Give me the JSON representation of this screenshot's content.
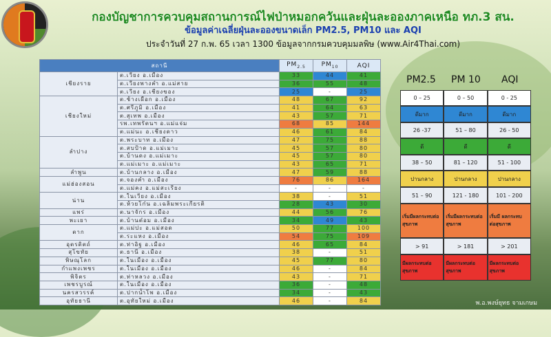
{
  "header": {
    "title": "กองบัญชาการควบคุมสถานการณ์ไฟป่าหมอกควันและฝุ่นละอองภาคเหนือ ทภ.3 สน.",
    "subtitle": "ข้อมูลค่าเฉลี่ยฝุ่นละอองขนาดเล็ก PM2.5, PM10 และ AQI",
    "date_line": "ประจำวันที่ 27 ก.พ. 65 เวลา 1300 ข้อมูลจากกรมควบคุมมลพิษ (www.Air4Thai.com)"
  },
  "table": {
    "col_station": "สถานี",
    "col_pm25": "PM2.5",
    "col_pm10": "PM10",
    "col_aqi": "AQI",
    "provinces": [
      {
        "name": "เชียงราย",
        "stations": [
          {
            "name": "ต.เวียง อ.เมือง",
            "pm25": "33",
            "pm10": "44",
            "aqi": "41",
            "c": [
              "g",
              "b",
              "g"
            ]
          },
          {
            "name": "ต.เวียงพางคำ อ.แม่สาย",
            "pm25": "36",
            "pm10": "55",
            "aqi": "48",
            "c": [
              "g",
              "g",
              "g"
            ]
          },
          {
            "name": "ต.เวียง อ.เชียงของ",
            "pm25": "25",
            "pm10": "-",
            "aqi": "25",
            "c": [
              "b",
              "w",
              "b"
            ]
          }
        ]
      },
      {
        "name": "เชียงใหม่",
        "stations": [
          {
            "name": "ต.ช้างเผือก อ.เมือง",
            "pm25": "48",
            "pm10": "67",
            "aqi": "92",
            "c": [
              "y",
              "g",
              "y"
            ]
          },
          {
            "name": "ต.ศรีภูมิ อ.เมือง",
            "pm25": "41",
            "pm10": "64",
            "aqi": "63",
            "c": [
              "y",
              "g",
              "y"
            ]
          },
          {
            "name": "ต.สุเทพ อ.เมือง",
            "pm25": "43",
            "pm10": "57",
            "aqi": "71",
            "c": [
              "y",
              "g",
              "y"
            ]
          },
          {
            "name": "รพ.เทพรัตนฯ อ.แม่แจ่ม",
            "pm25": "68",
            "pm10": "85",
            "aqi": "144",
            "c": [
              "o",
              "y",
              "o"
            ]
          },
          {
            "name": "ต.แม่นะ อ.เชียงดาว",
            "pm25": "46",
            "pm10": "61",
            "aqi": "84",
            "c": [
              "y",
              "g",
              "y"
            ]
          }
        ]
      },
      {
        "name": "ลำปาง",
        "stations": [
          {
            "name": "ต.พระบาท อ.เมือง",
            "pm25": "47",
            "pm10": "75",
            "aqi": "88",
            "c": [
              "y",
              "g",
              "y"
            ]
          },
          {
            "name": "ต.สบป้าด อ.แม่เมาะ",
            "pm25": "45",
            "pm10": "57",
            "aqi": "80",
            "c": [
              "y",
              "g",
              "y"
            ]
          },
          {
            "name": "ต.บ้านดง อ.แม่เมาะ",
            "pm25": "45",
            "pm10": "57",
            "aqi": "80",
            "c": [
              "y",
              "g",
              "y"
            ]
          },
          {
            "name": "ต.แม่เมาะ อ.แม่เมาะ",
            "pm25": "43",
            "pm10": "65",
            "aqi": "71",
            "c": [
              "y",
              "g",
              "y"
            ]
          }
        ]
      },
      {
        "name": "ลำพูน",
        "stations": [
          {
            "name": "ต.บ้านกลาง อ.เมือง",
            "pm25": "47",
            "pm10": "59",
            "aqi": "88",
            "c": [
              "y",
              "g",
              "y"
            ]
          }
        ]
      },
      {
        "name": "แม่ฮ่องสอน",
        "stations": [
          {
            "name": "ต.จองคำ อ.เมือง",
            "pm25": "76",
            "pm10": "86",
            "aqi": "164",
            "c": [
              "o",
              "y",
              "o"
            ]
          },
          {
            "name": "ต.แม่คง อ.แม่สะเรียง",
            "pm25": "-",
            "pm10": "-",
            "aqi": "-",
            "c": [
              "w",
              "w",
              "w"
            ]
          }
        ]
      },
      {
        "name": "น่าน",
        "stations": [
          {
            "name": "ต.ในเวียง อ.เมือง",
            "pm25": "38",
            "pm10": "-",
            "aqi": "51",
            "c": [
              "y",
              "w",
              "y"
            ]
          },
          {
            "name": "ต.ห้วยโก๋น อ.เฉลิมพระเกียรติ",
            "pm25": "28",
            "pm10": "43",
            "aqi": "30",
            "c": [
              "g",
              "b",
              "g"
            ]
          }
        ]
      },
      {
        "name": "แพร่",
        "stations": [
          {
            "name": "ต.นาจักร อ.เมือง",
            "pm25": "44",
            "pm10": "56",
            "aqi": "76",
            "c": [
              "y",
              "g",
              "y"
            ]
          }
        ]
      },
      {
        "name": "พะเยา",
        "stations": [
          {
            "name": "ต.บ้านต๋อม อ.เมือง",
            "pm25": "34",
            "pm10": "49",
            "aqi": "43",
            "c": [
              "g",
              "b",
              "g"
            ]
          }
        ]
      },
      {
        "name": "ตาก",
        "stations": [
          {
            "name": "ต.แม่ปะ อ.แม่สอด",
            "pm25": "50",
            "pm10": "77",
            "aqi": "100",
            "c": [
              "y",
              "g",
              "y"
            ]
          },
          {
            "name": "ต.ระแหง อ.เมือง",
            "pm25": "54",
            "pm10": "75",
            "aqi": "109",
            "c": [
              "o",
              "g",
              "o"
            ]
          }
        ]
      },
      {
        "name": "อุตรดิตถ์",
        "stations": [
          {
            "name": "ต.ท่าอิฐ อ.เมือง",
            "pm25": "46",
            "pm10": "65",
            "aqi": "84",
            "c": [
              "y",
              "g",
              "y"
            ]
          }
        ]
      },
      {
        "name": "สุโขทัย",
        "stations": [
          {
            "name": "ต.ธานี อ.เมือง",
            "pm25": "38",
            "pm10": "-",
            "aqi": "51",
            "c": [
              "y",
              "w",
              "y"
            ]
          }
        ]
      },
      {
        "name": "พิษณุโลก",
        "stations": [
          {
            "name": "ต.ในเมือง อ.เมือง",
            "pm25": "45",
            "pm10": "77",
            "aqi": "80",
            "c": [
              "y",
              "g",
              "y"
            ]
          }
        ]
      },
      {
        "name": "กำแพงเพชร",
        "stations": [
          {
            "name": "ต.ในเมือง อ.เมือง",
            "pm25": "46",
            "pm10": "-",
            "aqi": "84",
            "c": [
              "y",
              "w",
              "y"
            ]
          }
        ]
      },
      {
        "name": "พิจิตร",
        "stations": [
          {
            "name": "ต.ท่าหลวง อ.เมือง",
            "pm25": "43",
            "pm10": "-",
            "aqi": "71",
            "c": [
              "y",
              "w",
              "y"
            ]
          }
        ]
      },
      {
        "name": "เพชรบูรณ์",
        "stations": [
          {
            "name": "ต.ในเมือง อ.เมือง",
            "pm25": "36",
            "pm10": "-",
            "aqi": "48",
            "c": [
              "g",
              "w",
              "g"
            ]
          }
        ]
      },
      {
        "name": "นครสวรรค์",
        "stations": [
          {
            "name": "ต.ปากน้ำโพ อ.เมือง",
            "pm25": "34",
            "pm10": "-",
            "aqi": "43",
            "c": [
              "g",
              "w",
              "g"
            ]
          }
        ]
      },
      {
        "name": "อุทัยธานี",
        "stations": [
          {
            "name": "ต.อุทัยใหม่ อ.เมือง",
            "pm25": "46",
            "pm10": "-",
            "aqi": "84",
            "c": [
              "y",
              "w",
              "y"
            ]
          }
        ]
      }
    ]
  },
  "legend": {
    "headers": [
      "PM2.5",
      "PM 10",
      "AQI"
    ],
    "rows": [
      {
        "cls": "w",
        "cells": [
          "0 – 25",
          "0 – 50",
          "0 - 25"
        ]
      },
      {
        "cls": "b",
        "cells": [
          "ดีมาก",
          "ดีมาก",
          "ดีมาก"
        ]
      },
      {
        "cls": "w",
        "cells": [
          "26 -37",
          "51 – 80",
          "26 - 50"
        ]
      },
      {
        "cls": "g",
        "cells": [
          "ดี",
          "ดี",
          "ดี"
        ]
      },
      {
        "cls": "w",
        "cells": [
          "38 – 50",
          "81 – 120",
          "51 - 100"
        ]
      },
      {
        "cls": "y",
        "cells": [
          "ปานกลาง",
          "ปานกลาง",
          "ปานกลาง"
        ]
      },
      {
        "cls": "w",
        "cells": [
          "51 – 90",
          "121 - 180",
          "101 - 200"
        ]
      },
      {
        "cls": "o",
        "cells": [
          "เริ่มมีผลกระทบต่อสุขภาพ",
          "เริ่มมีผลกระทบต่อสุขภาพ",
          "เริ่มมี ผลกระทบ ต่อสุขภาพ"
        ]
      },
      {
        "cls": "w",
        "cells": [
          "> 91",
          "> 181",
          "> 201"
        ]
      },
      {
        "cls": "r",
        "cells": [
          "มีผลกระทบต่อสุขภาพ",
          "มีผลกระทบต่อสุขภาพ",
          "มีผลกระทบต่อสุขภาพ"
        ]
      }
    ]
  },
  "colors": {
    "blue": "#2f87d3",
    "green": "#3caa38",
    "yellow": "#f0d04c",
    "orange": "#ef7c40",
    "red": "#e8322e"
  },
  "footer": "พ.อ.พงษ์ยุทธ จามเกษม"
}
